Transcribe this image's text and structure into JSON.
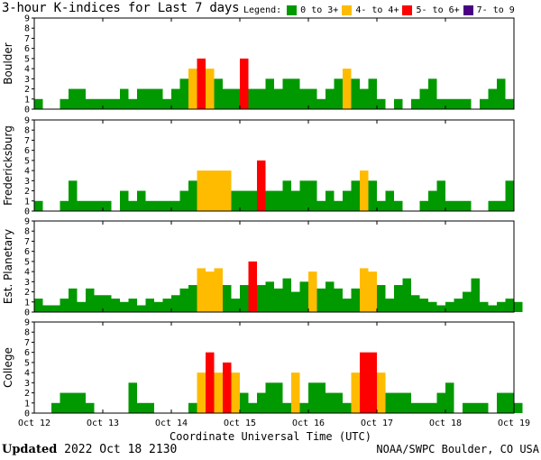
{
  "header": {
    "title": "3-hour K-indices for Last 7 days",
    "legend_label": "Legend:",
    "legend": [
      {
        "label": "0 to 3+",
        "color": "#009900",
        "icon": "green-square-swatch"
      },
      {
        "label": "4- to 4+",
        "color": "#ffbb00",
        "icon": "yellow-square-swatch"
      },
      {
        "label": "5- to 6+",
        "color": "#ff0000",
        "icon": "red-square-swatch"
      },
      {
        "label": "7- to 9",
        "color": "#4b0082",
        "icon": "purple-square-swatch"
      }
    ]
  },
  "footer": {
    "updated_label": "Updated",
    "updated_value": "2022 Oct 18 2130",
    "source": "NOAA/SWPC Boulder, CO USA"
  },
  "chart_data": {
    "type": "bar",
    "xlabel": "Coordinate Universal Time (UTC)",
    "x_ticks": [
      "Oct 12",
      "Oct 13",
      "Oct 14",
      "Oct 15",
      "Oct 16",
      "Oct 17",
      "Oct 18",
      "Oct 19"
    ],
    "ylim": [
      0,
      9
    ],
    "y_ticks": [
      0,
      1,
      2,
      3,
      4,
      5,
      6,
      7,
      8,
      9
    ],
    "thresholds": {
      "yellow_min": 4,
      "red_min": 5,
      "purple_min": 7
    },
    "colors": {
      "green": "#009900",
      "yellow": "#ffbb00",
      "red": "#ff0000",
      "purple": "#4b0082"
    },
    "panels": [
      {
        "name": "Boulder",
        "values": [
          1,
          0,
          0,
          1,
          2,
          2,
          1,
          1,
          1,
          1,
          2,
          1,
          2,
          2,
          2,
          1,
          2,
          3,
          4,
          5,
          4,
          3,
          2,
          2,
          5,
          2,
          2,
          3,
          2,
          3,
          3,
          2,
          2,
          1,
          2,
          3,
          4,
          3,
          2,
          3,
          1,
          0,
          1,
          0,
          1,
          2,
          3,
          1,
          1,
          1,
          1,
          0,
          1,
          2,
          3,
          1,
          0
        ]
      },
      {
        "name": "Fredericksburg",
        "values": [
          1,
          0,
          0,
          1,
          3,
          1,
          1,
          1,
          1,
          0,
          2,
          1,
          2,
          1,
          1,
          1,
          1,
          2,
          3,
          4,
          4,
          4,
          4,
          2,
          2,
          2,
          5,
          2,
          2,
          3,
          2,
          3,
          3,
          1,
          2,
          1,
          2,
          3,
          4,
          3,
          1,
          2,
          1,
          0,
          0,
          1,
          2,
          3,
          1,
          1,
          1,
          0,
          0,
          1,
          1,
          3,
          0
        ]
      },
      {
        "name": "Est. Planetary",
        "values": [
          1.33,
          0.67,
          0.67,
          1.33,
          2.33,
          1,
          2.33,
          1.67,
          1.67,
          1.33,
          1,
          1.33,
          0.67,
          1.33,
          1,
          1.33,
          1.67,
          2.33,
          2.67,
          4.33,
          4,
          4.33,
          2.67,
          1.33,
          2.67,
          5,
          2.67,
          3,
          2.33,
          3.33,
          2,
          3,
          4,
          2.33,
          3,
          2.33,
          1.33,
          2.33,
          4.33,
          4,
          2.67,
          1.33,
          2.67,
          3.33,
          1.67,
          1.33,
          1,
          0.67,
          1,
          1.33,
          2,
          3.33,
          1,
          0.67,
          1,
          1.33,
          1
        ]
      },
      {
        "name": "College",
        "values": [
          0,
          0,
          1,
          2,
          2,
          2,
          1,
          0,
          0,
          0,
          0,
          3,
          1,
          1,
          0,
          0,
          0,
          0,
          1,
          4,
          6,
          4,
          5,
          4,
          2,
          1,
          2,
          3,
          3,
          1,
          4,
          1,
          3,
          3,
          2,
          2,
          1,
          4,
          6,
          6,
          4,
          2,
          2,
          2,
          1,
          1,
          1,
          2,
          3,
          0,
          1,
          1,
          1,
          0,
          2,
          2,
          1,
          0
        ]
      }
    ]
  }
}
